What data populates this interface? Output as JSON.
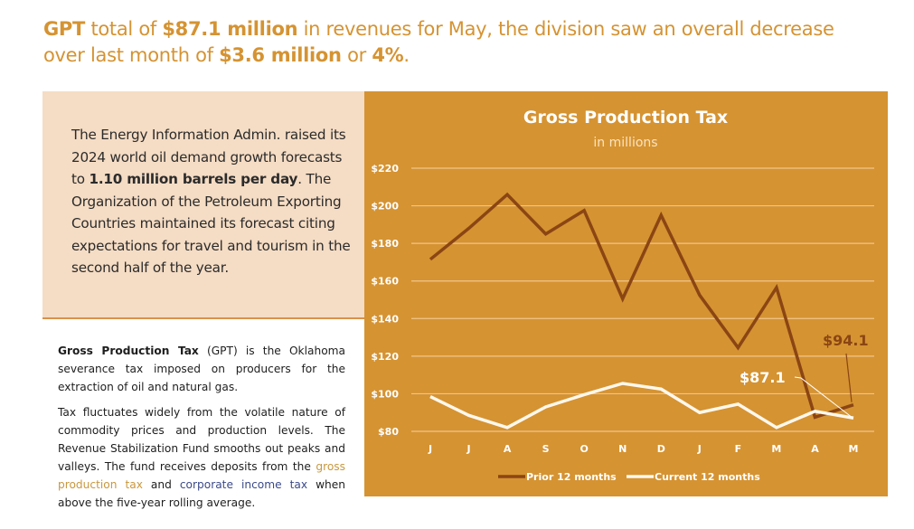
{
  "headline": {
    "part1_bold": "GPT",
    "part2": " total of ",
    "part3_bold": "$87.1 million",
    "part4": " in revenues for May, the division saw an overall decrease over last month of ",
    "part5_bold": "$3.6 million",
    "part6": " or ",
    "part7_bold": "4%",
    "part8": "."
  },
  "callout": {
    "part1": "The Energy Information Admin. raised its 2024 world oil demand growth forecasts to ",
    "part2_bold": "1.10 million barrels per day",
    "part3": ". The Organization of the Petroleum Exporting Countries maintained its forecast citing expectations for travel and tourism in the second half of the year."
  },
  "info": {
    "p1_bold": "Gross Production Tax",
    "p1_rest": " (GPT) is the Oklahoma severance tax imposed on producers for the extraction of oil and natural gas.",
    "p2_part1": "Tax fluctuates widely from the volatile nature of commodity prices and production levels. The Revenue Stabilization Fund smooths out peaks and valleys. The fund receives deposits from the ",
    "p2_link1": "gross production tax",
    "p2_part2": " and ",
    "p2_link2": "corporate income tax",
    "p2_part3": " when above the five-year rolling average."
  },
  "colors": {
    "accent": "#d59332",
    "panel_bg": "#d59332",
    "peach_bg": "#f5dcc4",
    "prior_line": "#8b4513",
    "current_line": "#fff8ec",
    "gridline": "#f2c48a",
    "link_gpt": "#c9983f",
    "link_cit": "#3b4a8a"
  },
  "chart_data": {
    "type": "line",
    "title": "Gross Production Tax",
    "subtitle": "in millions",
    "xlabel": "",
    "ylabel": "",
    "categories": [
      "J",
      "J",
      "A",
      "S",
      "O",
      "N",
      "D",
      "J",
      "F",
      "M",
      "A",
      "M"
    ],
    "ylim": [
      80,
      220
    ],
    "yticks": [
      80,
      100,
      120,
      140,
      160,
      180,
      200,
      220
    ],
    "ytick_labels": [
      "$80",
      "$100",
      "$120",
      "$140",
      "$160",
      "$180",
      "$200",
      "$220"
    ],
    "grid": true,
    "legend_position": "bottom",
    "series": [
      {
        "name": "Prior 12 months",
        "color": "#8b4513",
        "values": [
          171.5,
          188,
          206,
          185,
          197.5,
          150.5,
          195,
          152.5,
          124.5,
          156.5,
          87.5,
          94.1
        ]
      },
      {
        "name": "Current 12 months",
        "color": "#fff8ec",
        "values": [
          98.5,
          88.5,
          82,
          93,
          99.5,
          105.5,
          102.5,
          90,
          94.5,
          82,
          90.7,
          87.1
        ]
      }
    ],
    "annotations": [
      {
        "text": "$94.1",
        "series": "Prior 12 months",
        "category_index": 11,
        "color": "#8b4513"
      },
      {
        "text": "$87.1",
        "series": "Current 12 months",
        "category_index": 11,
        "color": "#ffffff"
      }
    ]
  }
}
